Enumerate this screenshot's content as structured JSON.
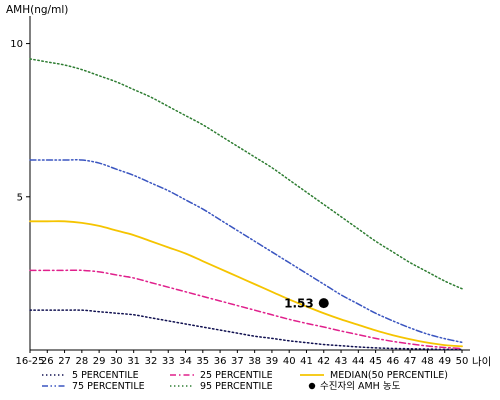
{
  "chart_data": {
    "type": "line",
    "title": "",
    "ylabel": "AMH(ng/ml)",
    "xlabel": "나이",
    "ylim": [
      0,
      10.9
    ],
    "yticks": [
      5,
      10
    ],
    "grid": false,
    "legend_position": "bottom",
    "x": [
      "16-25",
      "26",
      "27",
      "28",
      "29",
      "30",
      "31",
      "32",
      "33",
      "34",
      "35",
      "36",
      "37",
      "38",
      "39",
      "40",
      "41",
      "42",
      "43",
      "44",
      "45",
      "46",
      "47",
      "48",
      "49",
      "50"
    ],
    "series": [
      {
        "name": "5 PERCENTILE",
        "color": "#101050",
        "style": "dotted",
        "values": [
          1.3,
          1.3,
          1.3,
          1.3,
          1.25,
          1.2,
          1.15,
          1.05,
          0.95,
          0.85,
          0.75,
          0.65,
          0.55,
          0.45,
          0.38,
          0.3,
          0.24,
          0.18,
          0.14,
          0.1,
          0.07,
          0.05,
          0.04,
          0.03,
          0.02,
          0.02
        ]
      },
      {
        "name": "25 PERCENTILE",
        "color": "#e0208c",
        "style": "dashdot",
        "values": [
          2.6,
          2.6,
          2.6,
          2.6,
          2.55,
          2.45,
          2.35,
          2.2,
          2.05,
          1.9,
          1.75,
          1.6,
          1.45,
          1.3,
          1.15,
          1.0,
          0.87,
          0.75,
          0.62,
          0.5,
          0.38,
          0.28,
          0.2,
          0.13,
          0.08,
          0.05
        ]
      },
      {
        "name": "75 PERCENTILE",
        "color": "#3a55c0",
        "style": "dashdotdot",
        "values": [
          6.2,
          6.2,
          6.2,
          6.2,
          6.1,
          5.9,
          5.7,
          5.45,
          5.2,
          4.9,
          4.6,
          4.25,
          3.9,
          3.55,
          3.2,
          2.85,
          2.5,
          2.15,
          1.8,
          1.5,
          1.2,
          0.95,
          0.72,
          0.52,
          0.37,
          0.25
        ]
      },
      {
        "name": "MEDIAN(50 PERCENTILE)",
        "color": "#f5c400",
        "style": "solid",
        "values": [
          4.2,
          4.2,
          4.2,
          4.15,
          4.05,
          3.9,
          3.75,
          3.55,
          3.35,
          3.15,
          2.9,
          2.65,
          2.4,
          2.15,
          1.9,
          1.65,
          1.42,
          1.2,
          1.0,
          0.82,
          0.64,
          0.48,
          0.35,
          0.24,
          0.16,
          0.12
        ]
      },
      {
        "name": "95 PERCENTILE",
        "color": "#2e7d32",
        "style": "dotted",
        "values": [
          9.5,
          9.4,
          9.3,
          9.15,
          8.95,
          8.75,
          8.5,
          8.25,
          7.95,
          7.65,
          7.35,
          7.0,
          6.65,
          6.3,
          5.95,
          5.55,
          5.15,
          4.75,
          4.35,
          3.95,
          3.55,
          3.2,
          2.85,
          2.55,
          2.25,
          2.0
        ]
      }
    ],
    "marker": {
      "name": "수진자의 AMH 농도",
      "x": "42",
      "y": 1.53,
      "label": "1.53",
      "color": "#000000"
    }
  }
}
